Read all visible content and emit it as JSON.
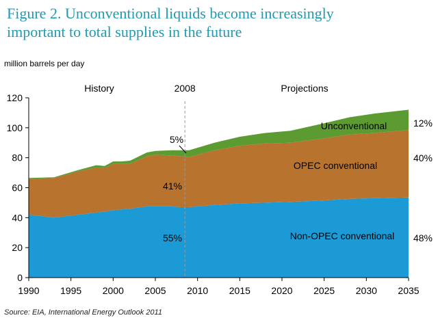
{
  "figure": {
    "title_line1": "Figure 2.  Unconventional liquids become increasingly",
    "title_line2": "important to total supplies in the future",
    "unit_label": "million barrels per day",
    "source": "Source:  EIA, International Energy Outlook 2011"
  },
  "chart_data": {
    "type": "area",
    "stacked": true,
    "title": "Figure 2.  Unconventional liquids become increasingly important to total supplies in the future",
    "ylabel": "million barrels per day",
    "xlabel": "",
    "xlim": [
      1990,
      2035
    ],
    "ylim": [
      0,
      120
    ],
    "yticks": [
      0,
      20,
      40,
      60,
      80,
      100,
      120
    ],
    "xticks": [
      1990,
      1995,
      2000,
      2005,
      2010,
      2015,
      2020,
      2025,
      2030,
      2035
    ],
    "grid": false,
    "divider": {
      "x": 2008.5,
      "label": "2008"
    },
    "region_labels": {
      "left": "History",
      "right": "Projections"
    },
    "x": [
      1990,
      1993,
      1996,
      1998,
      1999,
      2000,
      2001,
      2002,
      2004,
      2005,
      2007,
      2008,
      2009,
      2012,
      2015,
      2018,
      2021,
      2025,
      2028,
      2031,
      2035
    ],
    "series": [
      {
        "name": "Non-OPEC conventional",
        "color": "#1b9ad6",
        "values": [
          42,
          40,
          42,
          43.5,
          44,
          45,
          45.5,
          46,
          47.5,
          47.5,
          47.5,
          47,
          47,
          48.5,
          49.5,
          50,
          50.5,
          51.5,
          52.5,
          53,
          53.5
        ],
        "label_pct_2035": "48%",
        "label_pct_2008": "55%"
      },
      {
        "name": "OPEC conventional",
        "color": "#b8742f",
        "values": [
          24,
          26.5,
          29,
          30,
          29,
          31,
          30.5,
          30,
          33.5,
          34.5,
          34,
          34,
          33.5,
          36.5,
          38.5,
          39.5,
          39.5,
          41.5,
          43,
          43.5,
          45
        ],
        "label_pct_2035": "40%",
        "label_pct_2008": "41%"
      },
      {
        "name": "Unconventional",
        "color": "#5b9b32",
        "values": [
          0.5,
          0.5,
          1,
          1.5,
          1.5,
          1.5,
          1.5,
          2,
          2.5,
          2.5,
          3.5,
          4,
          4.5,
          5,
          6,
          7,
          8,
          10,
          11.5,
          13,
          13.5
        ],
        "label_pct_2035": "12%",
        "label_pct_2008": "5%"
      }
    ]
  }
}
